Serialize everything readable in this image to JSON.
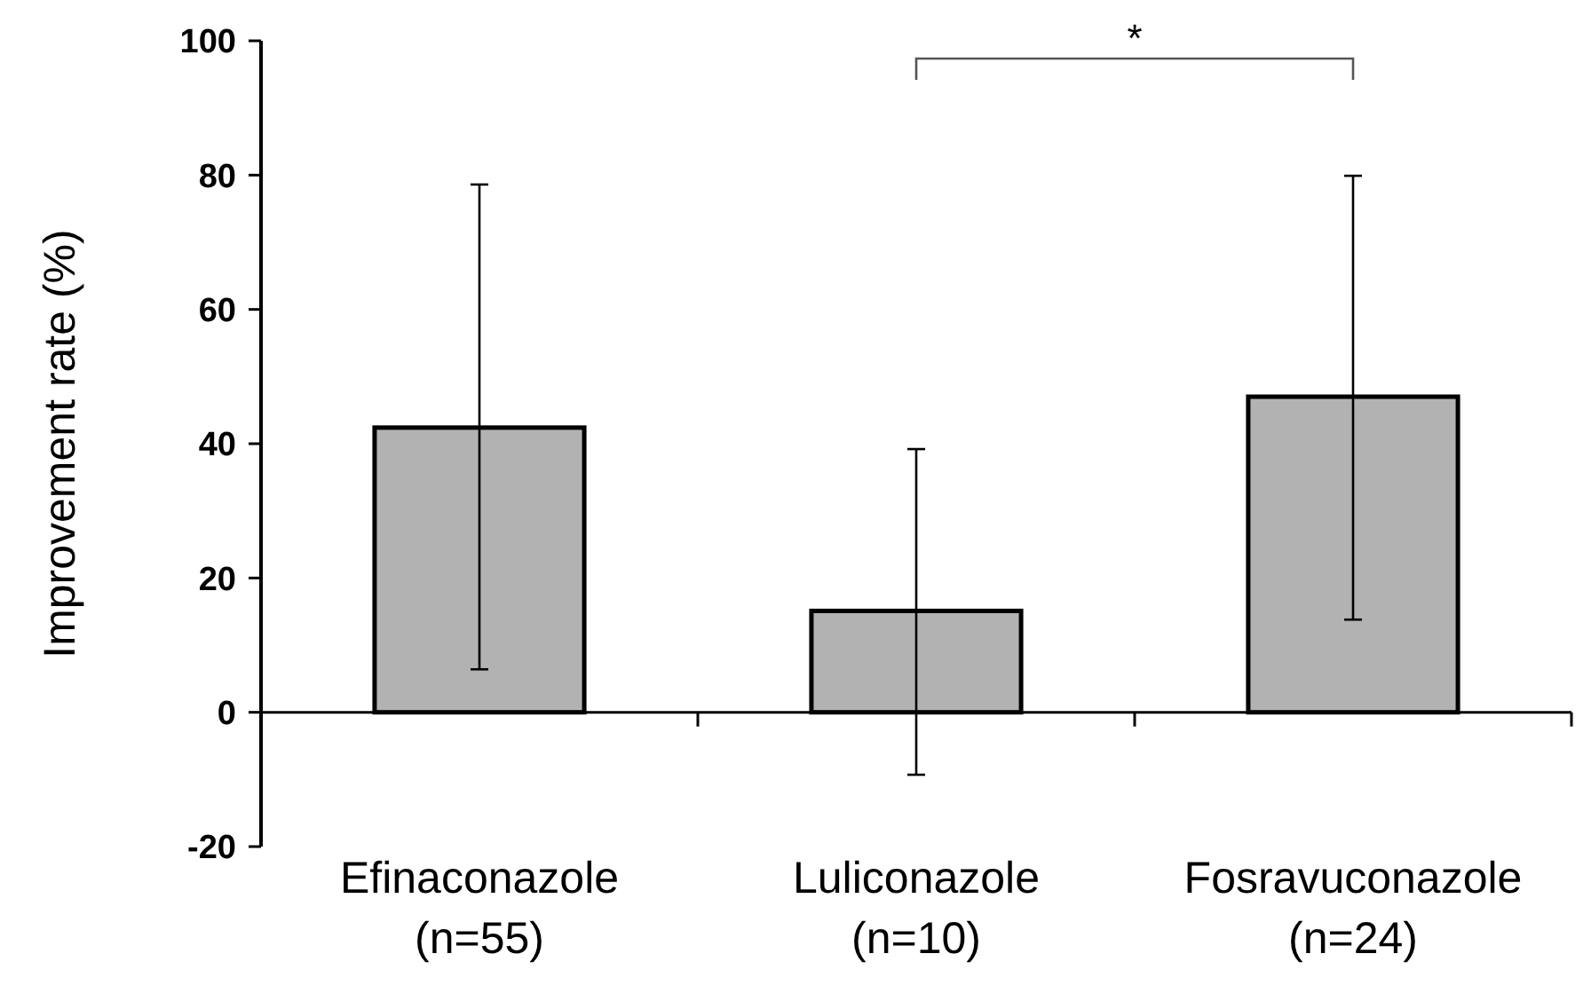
{
  "chart_data": {
    "type": "bar",
    "ylabel": "Improvement rate (%)",
    "categories": [
      "Efinaconazole\n(n=55)",
      "Luliconazole\n(n=10)",
      "Fosravuconazole\n(n=24)"
    ],
    "values": [
      42.4,
      15.1,
      47.0
    ],
    "color": "#b2b2b2",
    "errors": [
      [
        6.4,
        78.6
      ],
      [
        -9.3,
        39.2
      ],
      [
        13.8,
        79.9
      ]
    ],
    "ylim": [
      -20,
      100
    ],
    "yticks": [
      -20,
      0,
      20,
      40,
      60,
      80,
      100
    ],
    "annotations": [
      "*"
    ]
  }
}
